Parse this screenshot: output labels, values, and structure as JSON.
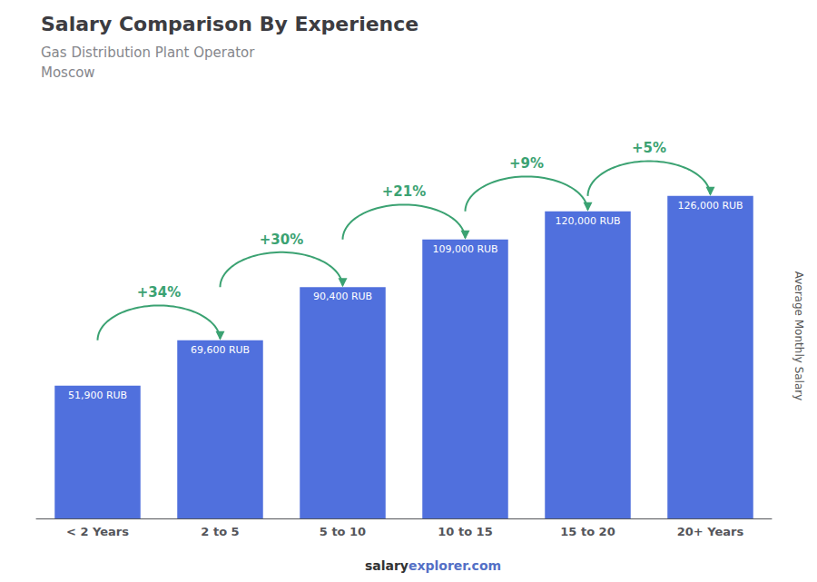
{
  "chart_data": {
    "type": "bar",
    "title": "Salary Comparison By Experience",
    "subtitle": [
      "Gas Distribution Plant Operator",
      "Moscow"
    ],
    "ylabel": "Average Monthly Salary",
    "categories": [
      "< 2 Years",
      "2 to 5",
      "5 to 10",
      "10 to 15",
      "15 to 20",
      "20+ Years"
    ],
    "values": [
      51900,
      69600,
      90400,
      109000,
      120000,
      126000
    ],
    "value_labels": [
      "51,900 RUB",
      "69,600 RUB",
      "90,400 RUB",
      "109,000 RUB",
      "120,000 RUB",
      "126,000 RUB"
    ],
    "data_labels": true,
    "annotations": [
      {
        "text": "+34%",
        "from": "< 2 Years",
        "to": "2 to 5"
      },
      {
        "text": "+30%",
        "from": "2 to 5",
        "to": "5 to 10"
      },
      {
        "text": "+21%",
        "from": "5 to 10",
        "to": "10 to 15"
      },
      {
        "text": "+9%",
        "from": "10 to 15",
        "to": "15 to 20"
      },
      {
        "text": "+5%",
        "from": "15 to 20",
        "to": "20+ Years"
      }
    ],
    "source": [
      "salary",
      "explorer.com"
    ],
    "ylim": [
      0,
      160000
    ],
    "grid": false,
    "tick_labels": "x"
  }
}
